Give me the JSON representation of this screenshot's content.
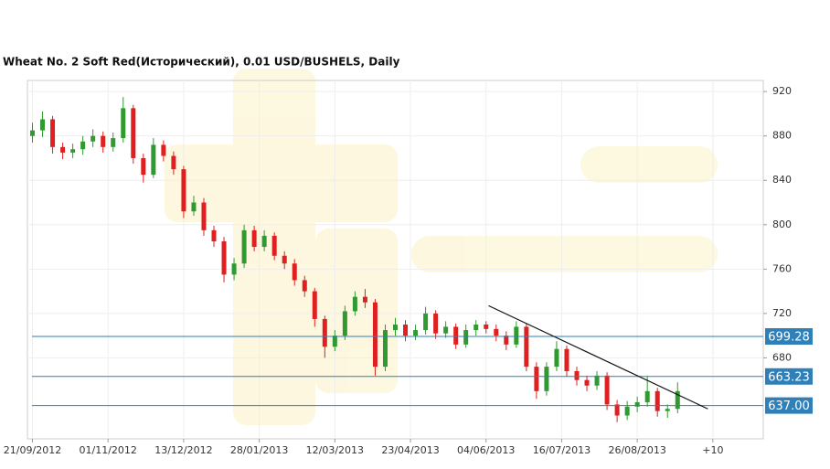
{
  "chart_data": {
    "type": "candlestick",
    "title": "Wheat  No. 2 Soft Red(Исторический), 0.01 USD/BUSHELS, Daily",
    "x": [
      0,
      4,
      8,
      12,
      16,
      20,
      24,
      28,
      32,
      36,
      40,
      44,
      48,
      52,
      56,
      60,
      64,
      68,
      72,
      76,
      80,
      84,
      88,
      92,
      96,
      100,
      104,
      108,
      112,
      116,
      120,
      124,
      128,
      132,
      136,
      140,
      144,
      148,
      152,
      156,
      160,
      164,
      168,
      172,
      176,
      180,
      184,
      188,
      192,
      196,
      200,
      204,
      208,
      212,
      216,
      220,
      224,
      228,
      232,
      236,
      240,
      244,
      248,
      252,
      256
    ],
    "open": [
      880,
      885,
      895,
      870,
      865,
      868,
      875,
      880,
      870,
      878,
      905,
      860,
      845,
      872,
      862,
      850,
      812,
      820,
      795,
      785,
      755,
      765,
      795,
      780,
      790,
      772,
      765,
      750,
      740,
      715,
      690,
      700,
      722,
      735,
      730,
      672,
      705,
      710,
      700,
      705,
      720,
      702,
      708,
      692,
      705,
      710,
      706,
      700,
      692,
      708,
      672,
      650,
      672,
      688,
      668,
      660,
      655,
      664,
      638,
      628,
      636,
      640,
      650,
      632,
      634
    ],
    "high": [
      892,
      902,
      898,
      874,
      873,
      880,
      886,
      884,
      883,
      915,
      908,
      864,
      878,
      876,
      866,
      853,
      826,
      824,
      799,
      789,
      770,
      800,
      799,
      795,
      793,
      776,
      769,
      754,
      743,
      718,
      705,
      727,
      740,
      742,
      733,
      710,
      716,
      714,
      710,
      726,
      723,
      713,
      711,
      710,
      714,
      713,
      710,
      704,
      713,
      711,
      676,
      676,
      695,
      691,
      672,
      664,
      668,
      667,
      642,
      641,
      645,
      664,
      653,
      638,
      658
    ],
    "low": [
      874,
      879,
      864,
      859,
      860,
      863,
      870,
      865,
      866,
      874,
      855,
      838,
      842,
      857,
      845,
      806,
      808,
      790,
      780,
      748,
      750,
      761,
      776,
      776,
      768,
      760,
      745,
      735,
      708,
      680,
      686,
      696,
      718,
      725,
      664,
      668,
      700,
      695,
      696,
      701,
      697,
      698,
      688,
      689,
      700,
      702,
      695,
      687,
      689,
      668,
      643,
      646,
      668,
      663,
      655,
      650,
      651,
      633,
      622,
      624,
      631,
      636,
      627,
      626,
      630
    ],
    "close": [
      885,
      895,
      870,
      865,
      868,
      875,
      880,
      870,
      878,
      905,
      860,
      845,
      872,
      862,
      850,
      812,
      820,
      795,
      785,
      755,
      765,
      795,
      780,
      790,
      772,
      765,
      750,
      740,
      715,
      690,
      700,
      722,
      735,
      730,
      672,
      705,
      710,
      700,
      705,
      720,
      702,
      708,
      692,
      705,
      710,
      706,
      700,
      692,
      708,
      672,
      650,
      672,
      688,
      668,
      660,
      655,
      664,
      638,
      628,
      636,
      640,
      650,
      632,
      634,
      650
    ],
    "up_color": "#2f9a2f",
    "down_color": "#e02020",
    "xlim": [
      -2,
      290
    ],
    "xticks": [
      {
        "value": 0,
        "label": "21/09/2012"
      },
      {
        "value": 30,
        "label": "01/11/2012"
      },
      {
        "value": 60,
        "label": "13/12/2012"
      },
      {
        "value": 90,
        "label": "28/01/2013"
      },
      {
        "value": 120,
        "label": "12/03/2013"
      },
      {
        "value": 150,
        "label": "23/04/2013"
      },
      {
        "value": 180,
        "label": "04/06/2013"
      },
      {
        "value": 210,
        "label": "16/07/2013"
      },
      {
        "value": 240,
        "label": "26/08/2013"
      },
      {
        "value": 270,
        "label": "+10"
      }
    ],
    "ylim": [
      607,
      930
    ],
    "yticks": [
      680,
      720,
      760,
      800,
      840,
      880,
      920
    ],
    "grid": true,
    "levels": [
      {
        "value": 699.28,
        "label": "699.28"
      },
      {
        "value": 663.23,
        "label": "663.23"
      },
      {
        "value": 637,
        "label": "637.00"
      }
    ],
    "level_color": "#2f7fb8",
    "trendline": {
      "x": [
        181,
        268
      ],
      "y": [
        727,
        634
      ]
    }
  }
}
